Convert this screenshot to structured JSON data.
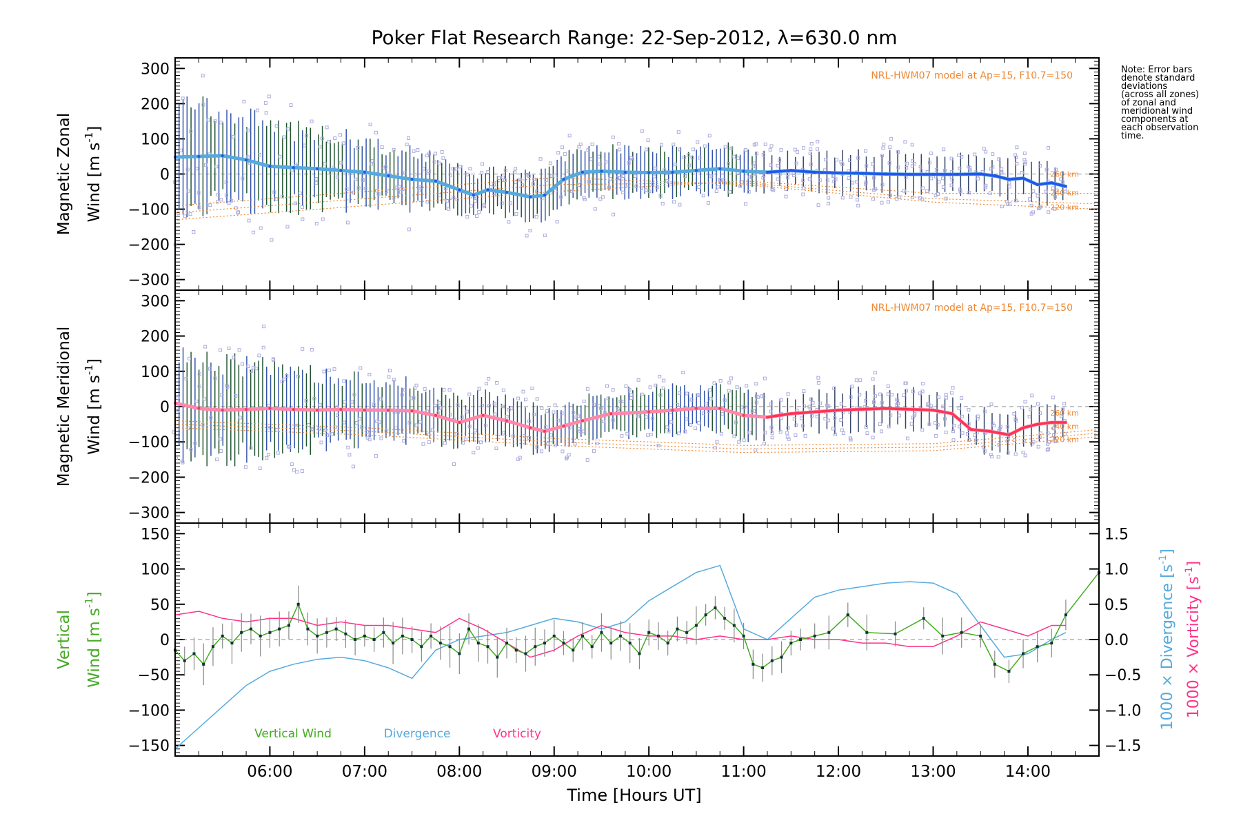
{
  "title": "Poker Flat Research Range: 22-Sep-2012, λ=630.0 nm",
  "note": [
    "Note: Error bars",
    "denote standard",
    "deviations",
    "(across all zones)",
    "of zonal and",
    "meridional wind",
    "components at",
    "each observation",
    "time."
  ],
  "xaxis": {
    "label": "Time [Hours UT]",
    "ticks": [
      "06:00",
      "07:00",
      "08:00",
      "09:00",
      "10:00",
      "11:00",
      "12:00",
      "13:00",
      "14:00"
    ],
    "range_hours": [
      5.0,
      14.75
    ]
  },
  "colors": {
    "zonal": "#2255ee",
    "zonal_light": "#55aadd",
    "meridional": "#ff3355",
    "vertical": "#44aa22",
    "divergence": "#55aadd",
    "vorticity": "#ff3388",
    "model": "#ee8833",
    "scatter": "#aaaadd"
  },
  "chart_data": [
    {
      "type": "line",
      "ylabel": "Magnetic Zonal Wind [m s^-1]",
      "ylabel_line1": "Magnetic Zonal",
      "ylabel_line2": "Wind [m s",
      "ylabel_sup": "-1",
      "ylabel_end": "]",
      "ylim": [
        -330,
        330
      ],
      "yticks": [
        -300,
        -200,
        -100,
        0,
        100,
        200,
        300
      ],
      "model_label": "NRL-HWM07 model at Ap=15, F10.7=150",
      "model_altitudes": [
        "260 km",
        "240 km",
        "220 km"
      ],
      "series": [
        {
          "x": [
            5.0,
            5.25,
            5.5,
            5.75,
            6.0,
            6.25,
            6.5,
            6.75,
            7.0,
            7.25,
            7.5,
            7.75,
            8.0,
            8.15,
            8.3,
            8.5,
            8.75,
            8.9,
            9.1,
            9.3,
            9.5,
            9.75,
            10.0,
            10.25,
            10.5,
            10.75,
            11.0,
            11.25,
            11.5,
            11.75,
            12.0,
            12.25,
            12.5,
            12.75,
            13.0,
            13.25,
            13.5,
            13.65,
            13.8,
            13.95,
            14.1,
            14.25,
            14.4
          ],
          "y": [
            48,
            50,
            52,
            40,
            22,
            18,
            15,
            10,
            5,
            -5,
            -15,
            -20,
            -45,
            -60,
            -45,
            -52,
            -65,
            -60,
            -15,
            5,
            8,
            5,
            4,
            5,
            10,
            15,
            8,
            5,
            10,
            5,
            3,
            2,
            0,
            -1,
            -1,
            -1,
            0,
            -5,
            -15,
            -12,
            -30,
            -25,
            -35
          ]
        }
      ],
      "model": [
        {
          "name": "260 km",
          "x": [
            5.0,
            7.0,
            9.0,
            11.0,
            13.0,
            14.75
          ],
          "y": [
            -130,
            -90,
            -50,
            -20,
            -55,
            -55
          ]
        },
        {
          "name": "240 km",
          "x": [
            5.0,
            7.0,
            9.0,
            11.0,
            13.0,
            14.75
          ],
          "y": [
            -110,
            -70,
            -30,
            -25,
            -70,
            -85
          ]
        },
        {
          "name": "220 km",
          "x": [
            5.0,
            7.0,
            9.0,
            11.0,
            13.0,
            14.75
          ],
          "y": [
            -90,
            -50,
            -10,
            -30,
            -80,
            -100
          ]
        }
      ]
    },
    {
      "type": "line",
      "ylabel": "Magnetic Meridional Wind [m s^-1]",
      "ylabel_line1": "Magnetic Meridional",
      "ylabel_line2": "Wind [m s",
      "ylabel_sup": "-1",
      "ylabel_end": "]",
      "ylim": [
        -330,
        330
      ],
      "yticks": [
        -300,
        -200,
        -100,
        0,
        100,
        200,
        300
      ],
      "model_label": "NRL-HWM07 model at Ap=15, F10.7=150",
      "model_altitudes": [
        "260 km",
        "240 km",
        "220 km"
      ],
      "series": [
        {
          "x": [
            5.0,
            5.25,
            5.5,
            5.75,
            6.0,
            6.25,
            6.5,
            6.75,
            7.0,
            7.25,
            7.5,
            7.75,
            8.0,
            8.25,
            8.5,
            8.75,
            8.9,
            9.1,
            9.3,
            9.6,
            10.0,
            10.25,
            10.5,
            10.75,
            11.0,
            11.25,
            11.5,
            11.75,
            12.0,
            12.5,
            13.0,
            13.2,
            13.4,
            13.6,
            13.8,
            13.95,
            14.1,
            14.25,
            14.4
          ],
          "y": [
            10,
            -5,
            -10,
            -8,
            -5,
            -8,
            -10,
            -8,
            -10,
            -10,
            -12,
            -25,
            -45,
            -25,
            -40,
            -60,
            -70,
            -55,
            -40,
            -20,
            -15,
            -10,
            -5,
            -5,
            -25,
            -30,
            -20,
            -15,
            -10,
            -5,
            -10,
            -20,
            -65,
            -70,
            -80,
            -60,
            -50,
            -45,
            -45
          ]
        }
      ],
      "model": [
        {
          "name": "260 km",
          "x": [
            5.0,
            7.0,
            9.0,
            11.0,
            13.0,
            14.75
          ],
          "y": [
            -40,
            -60,
            -90,
            -110,
            -105,
            -65
          ]
        },
        {
          "name": "240 km",
          "x": [
            5.0,
            7.0,
            9.0,
            11.0,
            13.0,
            14.75
          ],
          "y": [
            -50,
            -70,
            -100,
            -120,
            -115,
            -75
          ]
        },
        {
          "name": "220 km",
          "x": [
            5.0,
            7.0,
            9.0,
            11.0,
            13.0,
            14.75
          ],
          "y": [
            -60,
            -80,
            -110,
            -130,
            -125,
            -85
          ]
        }
      ]
    },
    {
      "type": "line",
      "ylabel": "Vertical Wind [m s^-1]",
      "ylabel_line1": "Vertical",
      "ylabel_line2": "Wind [m s",
      "ylabel_sup": "-1",
      "ylabel_end": "]",
      "ylim": [
        -165,
        165
      ],
      "yticks": [
        -150,
        -100,
        -50,
        0,
        50,
        100,
        150
      ],
      "y2label_div": "1000 × Divergence [s",
      "y2label_vort": "1000 × Vorticity [s",
      "y2label_sup": "-1",
      "y2label_end": "]",
      "y2lim": [
        -1.65,
        1.65
      ],
      "y2ticks": [
        -1.5,
        -1.0,
        -0.5,
        0.0,
        0.5,
        1.0,
        1.5
      ],
      "legend": [
        "Vertical Wind",
        "Divergence",
        "Vorticity"
      ],
      "series": [
        {
          "name": "Vertical Wind",
          "axis": "left",
          "x": [
            5.0,
            5.1,
            5.2,
            5.3,
            5.4,
            5.5,
            5.6,
            5.7,
            5.8,
            5.9,
            6.0,
            6.1,
            6.2,
            6.3,
            6.4,
            6.5,
            6.6,
            6.7,
            6.8,
            6.9,
            7.0,
            7.1,
            7.2,
            7.3,
            7.4,
            7.5,
            7.6,
            7.7,
            7.8,
            7.9,
            8.0,
            8.1,
            8.2,
            8.3,
            8.4,
            8.5,
            8.6,
            8.7,
            8.8,
            8.9,
            9.0,
            9.1,
            9.2,
            9.3,
            9.4,
            9.5,
            9.6,
            9.7,
            9.8,
            9.9,
            10.0,
            10.1,
            10.2,
            10.3,
            10.4,
            10.5,
            10.6,
            10.7,
            10.8,
            10.9,
            11.0,
            11.1,
            11.2,
            11.3,
            11.4,
            11.5,
            11.6,
            11.75,
            11.9,
            12.1,
            12.3,
            12.6,
            12.9,
            13.1,
            13.3,
            13.5,
            13.65,
            13.8,
            13.95,
            14.1,
            14.25,
            14.4,
            14.75
          ],
          "y": [
            -15,
            -30,
            -20,
            -35,
            -10,
            5,
            -5,
            10,
            15,
            5,
            10,
            15,
            20,
            50,
            15,
            5,
            10,
            15,
            8,
            0,
            5,
            0,
            10,
            -5,
            5,
            0,
            -10,
            5,
            -5,
            -10,
            -20,
            15,
            -5,
            -10,
            -25,
            -5,
            -15,
            -20,
            -10,
            -5,
            5,
            -5,
            -15,
            5,
            -10,
            10,
            -5,
            5,
            -5,
            -20,
            10,
            5,
            -5,
            15,
            10,
            20,
            35,
            45,
            30,
            20,
            5,
            -35,
            -40,
            -30,
            -25,
            -5,
            0,
            5,
            10,
            35,
            10,
            8,
            30,
            5,
            10,
            5,
            -35,
            -45,
            -20,
            -10,
            -5,
            35,
            95
          ]
        },
        {
          "name": "Divergence",
          "axis": "right",
          "x": [
            5.0,
            5.25,
            5.5,
            5.75,
            6.0,
            6.25,
            6.5,
            6.75,
            7.0,
            7.25,
            7.5,
            7.75,
            8.0,
            8.25,
            8.5,
            8.75,
            9.0,
            9.25,
            9.5,
            9.75,
            10.0,
            10.25,
            10.5,
            10.75,
            11.0,
            11.25,
            11.5,
            11.75,
            12.0,
            12.25,
            12.5,
            12.75,
            13.0,
            13.25,
            13.5,
            13.75,
            14.0,
            14.25,
            14.4
          ],
          "y": [
            -1.55,
            -1.25,
            -0.95,
            -0.65,
            -0.45,
            -0.35,
            -0.28,
            -0.25,
            -0.3,
            -0.4,
            -0.55,
            -0.15,
            0.0,
            0.05,
            0.1,
            0.2,
            0.3,
            0.25,
            0.15,
            0.25,
            0.55,
            0.75,
            0.95,
            1.05,
            0.15,
            0.0,
            0.3,
            0.6,
            0.7,
            0.75,
            0.8,
            0.82,
            0.8,
            0.65,
            0.2,
            -0.25,
            -0.2,
            0.0,
            0.1
          ]
        },
        {
          "name": "Vorticity",
          "axis": "right",
          "x": [
            5.0,
            5.25,
            5.5,
            5.75,
            6.0,
            6.25,
            6.5,
            6.75,
            7.0,
            7.25,
            7.5,
            7.75,
            8.0,
            8.25,
            8.5,
            8.75,
            9.0,
            9.25,
            9.5,
            9.75,
            10.0,
            10.25,
            10.5,
            10.75,
            11.0,
            11.25,
            11.5,
            11.75,
            12.0,
            12.25,
            12.5,
            12.75,
            13.0,
            13.25,
            13.5,
            13.75,
            14.0,
            14.25,
            14.4
          ],
          "y": [
            0.35,
            0.4,
            0.3,
            0.25,
            0.3,
            0.3,
            0.2,
            0.25,
            0.2,
            0.2,
            0.15,
            0.1,
            0.3,
            0.15,
            -0.05,
            -0.25,
            -0.15,
            0.05,
            0.2,
            0.1,
            0.05,
            0.05,
            0.0,
            0.05,
            0.0,
            0.0,
            0.05,
            0.0,
            0.0,
            -0.05,
            -0.05,
            -0.1,
            -0.1,
            0.05,
            0.25,
            0.15,
            0.05,
            0.2,
            0.2
          ]
        }
      ]
    }
  ]
}
